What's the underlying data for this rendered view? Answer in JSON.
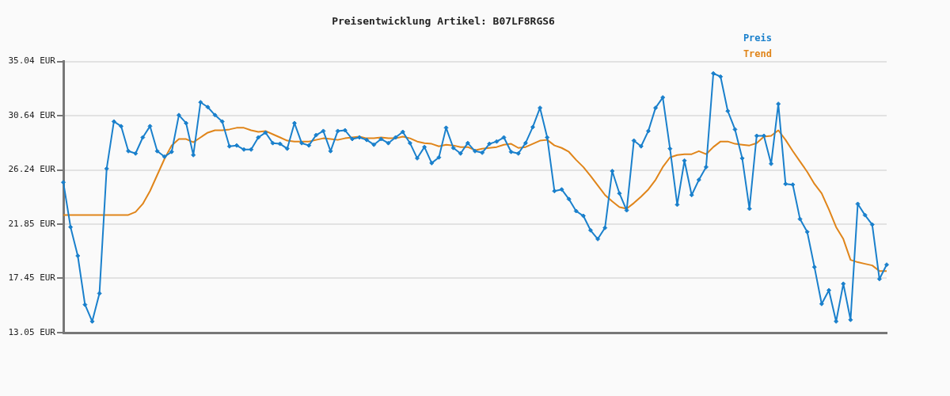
{
  "chart_data": {
    "type": "line",
    "title": "Preisentwicklung Artikel: B07LF8RGS6",
    "categories": [
      null,
      null,
      null,
      null,
      null,
      null,
      null,
      null,
      null,
      null,
      null,
      null,
      null,
      null,
      null,
      null,
      null,
      null,
      null,
      null,
      null,
      null,
      null,
      null,
      null,
      null,
      null,
      null,
      null,
      null,
      null,
      null,
      null,
      null,
      null,
      null,
      null,
      null,
      null,
      null,
      null,
      null,
      null,
      null,
      null,
      null,
      null,
      null,
      null,
      null,
      null,
      null,
      null,
      null,
      null,
      null,
      null,
      null,
      null,
      null,
      null,
      null,
      null,
      null,
      null,
      null,
      null,
      null,
      null,
      null,
      null,
      null,
      null,
      null,
      null,
      null,
      null,
      null,
      null,
      null,
      null,
      null,
      null,
      null,
      null,
      null,
      null,
      null,
      null,
      null,
      null,
      null,
      null,
      null,
      null,
      null,
      null,
      null,
      null,
      null,
      null,
      null,
      null,
      null,
      null,
      null,
      null,
      null,
      null,
      null,
      null,
      null,
      null,
      null,
      null
    ],
    "series": [
      {
        "name": "Preis",
        "color": "#1a80cc",
        "marker": "diamond",
        "values": [
          25.24,
          21.61,
          19.28,
          15.32,
          13.96,
          16.23,
          26.35,
          30.17,
          29.79,
          27.77,
          27.58,
          28.88,
          29.79,
          27.77,
          27.32,
          27.71,
          30.69,
          30.04,
          27.45,
          31.73,
          31.34,
          30.69,
          30.17,
          28.16,
          28.23,
          27.9,
          27.9,
          28.88,
          29.27,
          28.42,
          28.36,
          27.97,
          30.04,
          28.42,
          28.23,
          29.07,
          29.4,
          27.77,
          29.4,
          29.46,
          28.75,
          28.88,
          28.68,
          28.29,
          28.75,
          28.42,
          28.88,
          29.33,
          28.42,
          27.19,
          28.1,
          26.8,
          27.26,
          29.66,
          28.03,
          27.58,
          28.42,
          27.77,
          27.64,
          28.36,
          28.55,
          28.88,
          27.71,
          27.58,
          28.42,
          29.72,
          31.28,
          28.88,
          24.53,
          24.66,
          23.88,
          22.91,
          22.52,
          21.35,
          20.64,
          21.55,
          26.15,
          24.34,
          22.97,
          28.62,
          28.16,
          29.4,
          31.28,
          32.12,
          27.97,
          23.43,
          27.0,
          24.21,
          25.44,
          26.48,
          34.07,
          33.81,
          31.02,
          29.53,
          27.19,
          23.1,
          29.01,
          29.01,
          26.74,
          31.6,
          25.11,
          25.05,
          22.26,
          21.22,
          18.37,
          15.38,
          16.49,
          13.96,
          17.01,
          14.09,
          23.49,
          22.58,
          21.81,
          17.4,
          18.56
        ]
      },
      {
        "name": "Trend",
        "color": "#e0851a",
        "marker": "none",
        "values": [
          22.59,
          22.59,
          22.59,
          22.59,
          22.59,
          22.59,
          22.59,
          22.59,
          22.59,
          22.59,
          22.84,
          23.49,
          24.53,
          25.83,
          27.13,
          28.23,
          28.75,
          28.75,
          28.49,
          28.88,
          29.27,
          29.46,
          29.46,
          29.53,
          29.66,
          29.66,
          29.46,
          29.33,
          29.4,
          29.14,
          28.88,
          28.62,
          28.55,
          28.55,
          28.55,
          28.68,
          28.81,
          28.75,
          28.68,
          28.81,
          28.88,
          28.94,
          28.81,
          28.81,
          28.88,
          28.81,
          28.81,
          28.94,
          28.81,
          28.55,
          28.42,
          28.36,
          28.16,
          28.29,
          28.23,
          28.1,
          28.1,
          27.84,
          27.97,
          28.03,
          28.1,
          28.29,
          28.36,
          28.03,
          28.1,
          28.36,
          28.62,
          28.68,
          28.23,
          28.03,
          27.71,
          27.06,
          26.48,
          25.76,
          24.99,
          24.21,
          23.69,
          23.23,
          23.1,
          23.56,
          24.08,
          24.66,
          25.44,
          26.48,
          27.26,
          27.45,
          27.52,
          27.52,
          27.77,
          27.52,
          28.1,
          28.55,
          28.55,
          28.36,
          28.29,
          28.23,
          28.42,
          28.94,
          29.01,
          29.46,
          28.68,
          27.77,
          26.93,
          26.09,
          25.11,
          24.34,
          23.04,
          21.61,
          20.64,
          18.95,
          18.76,
          18.63,
          18.5,
          18.04,
          18.04
        ]
      }
    ],
    "ylim": [
      13.05,
      35.04
    ],
    "yticks": [
      {
        "value": 13.05,
        "label": "13.05 EUR"
      },
      {
        "value": 17.45,
        "label": "17.45 EUR"
      },
      {
        "value": 21.85,
        "label": "21.85 EUR"
      },
      {
        "value": 26.24,
        "label": "26.24 EUR"
      },
      {
        "value": 30.64,
        "label": "30.64 EUR"
      },
      {
        "value": 35.04,
        "label": "35.04 EUR"
      }
    ],
    "grid": "y",
    "legend": "top right",
    "line_style": "solid"
  }
}
